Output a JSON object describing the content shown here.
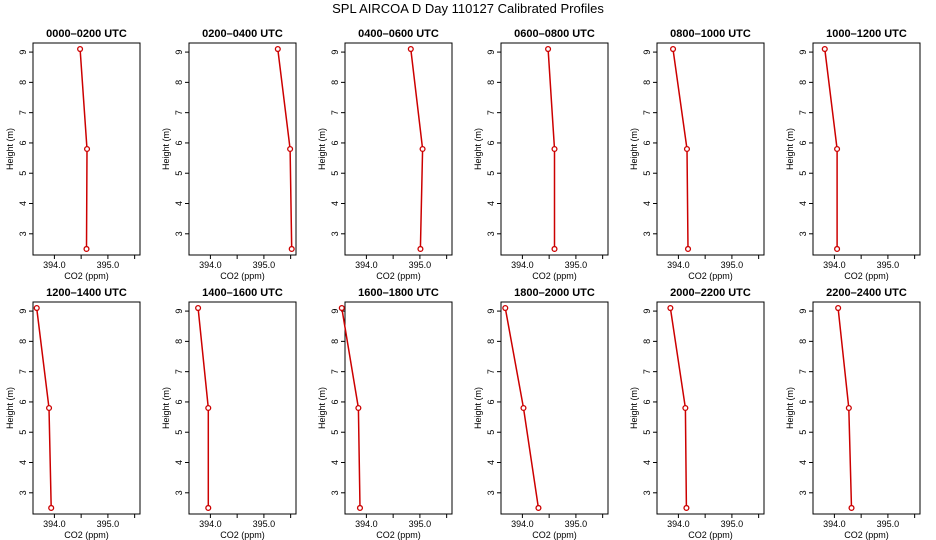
{
  "title": "SPL AIRCOA D  Day 110127  Calibrated Profiles",
  "colors": {
    "profile": "#cc0000",
    "axis": "#000000"
  },
  "chart_data": [
    {
      "type": "line",
      "title": "0000–0200 UTC",
      "xlabel": "CO2 (ppm)",
      "ylabel": "Height (m)",
      "xlim": [
        393.6,
        395.6
      ],
      "ylim": [
        2.3,
        9.3
      ],
      "xticks": [
        "394.0",
        "395.0"
      ],
      "yticks": [
        "3",
        "4",
        "5",
        "6",
        "7",
        "8",
        "9"
      ],
      "series": [
        {
          "x": [
            394.48,
            394.61,
            394.6
          ],
          "y": [
            9.1,
            5.8,
            2.5
          ]
        }
      ]
    },
    {
      "type": "line",
      "title": "0200–0400 UTC",
      "xlabel": "CO2 (ppm)",
      "ylabel": "Height (m)",
      "xlim": [
        393.6,
        395.6
      ],
      "ylim": [
        2.3,
        9.3
      ],
      "xticks": [
        "394.0",
        "395.0"
      ],
      "yticks": [
        "3",
        "4",
        "5",
        "6",
        "7",
        "8",
        "9"
      ],
      "series": [
        {
          "x": [
            395.26,
            395.49,
            395.52
          ],
          "y": [
            9.1,
            5.8,
            2.5
          ]
        }
      ]
    },
    {
      "type": "line",
      "title": "0400–0600 UTC",
      "xlabel": "CO2 (ppm)",
      "ylabel": "Height (m)",
      "xlim": [
        393.6,
        395.6
      ],
      "ylim": [
        2.3,
        9.3
      ],
      "xticks": [
        "394.0",
        "395.0"
      ],
      "yticks": [
        "3",
        "4",
        "5",
        "6",
        "7",
        "8",
        "9"
      ],
      "series": [
        {
          "x": [
            394.83,
            395.05,
            395.01
          ],
          "y": [
            9.1,
            5.8,
            2.5
          ]
        }
      ]
    },
    {
      "type": "line",
      "title": "0600–0800 UTC",
      "xlabel": "CO2 (ppm)",
      "ylabel": "Height (m)",
      "xlim": [
        393.6,
        395.6
      ],
      "ylim": [
        2.3,
        9.3
      ],
      "xticks": [
        "394.0",
        "395.0"
      ],
      "yticks": [
        "3",
        "4",
        "5",
        "6",
        "7",
        "8",
        "9"
      ],
      "series": [
        {
          "x": [
            394.48,
            394.6,
            394.6
          ],
          "y": [
            9.1,
            5.8,
            2.5
          ]
        }
      ]
    },
    {
      "type": "line",
      "title": "0800–1000 UTC",
      "xlabel": "CO2 (ppm)",
      "ylabel": "Height (m)",
      "xlim": [
        393.6,
        395.6
      ],
      "ylim": [
        2.3,
        9.3
      ],
      "xticks": [
        "394.0",
        "395.0"
      ],
      "yticks": [
        "3",
        "4",
        "5",
        "6",
        "7",
        "8",
        "9"
      ],
      "series": [
        {
          "x": [
            393.9,
            394.16,
            394.18
          ],
          "y": [
            9.1,
            5.8,
            2.5
          ]
        }
      ]
    },
    {
      "type": "line",
      "title": "1000–1200 UTC",
      "xlabel": "CO2 (ppm)",
      "ylabel": "Height (m)",
      "xlim": [
        393.6,
        395.6
      ],
      "ylim": [
        2.3,
        9.3
      ],
      "xticks": [
        "394.0",
        "395.0"
      ],
      "yticks": [
        "3",
        "4",
        "5",
        "6",
        "7",
        "8",
        "9"
      ],
      "series": [
        {
          "x": [
            393.82,
            394.05,
            394.05
          ],
          "y": [
            9.1,
            5.8,
            2.5
          ]
        }
      ]
    },
    {
      "type": "line",
      "title": "1200–1400 UTC",
      "xlabel": "CO2 (ppm)",
      "ylabel": "Height (m)",
      "xlim": [
        393.6,
        395.6
      ],
      "ylim": [
        2.3,
        9.3
      ],
      "xticks": [
        "394.0",
        "395.0"
      ],
      "yticks": [
        "3",
        "4",
        "5",
        "6",
        "7",
        "8",
        "9"
      ],
      "series": [
        {
          "x": [
            393.67,
            393.9,
            393.94
          ],
          "y": [
            9.1,
            5.8,
            2.5
          ]
        }
      ]
    },
    {
      "type": "line",
      "title": "1400–1600 UTC",
      "xlabel": "CO2 (ppm)",
      "ylabel": "Height (m)",
      "xlim": [
        393.6,
        395.6
      ],
      "ylim": [
        2.3,
        9.3
      ],
      "xticks": [
        "394.0",
        "395.0"
      ],
      "yticks": [
        "3",
        "4",
        "5",
        "6",
        "7",
        "8",
        "9"
      ],
      "series": [
        {
          "x": [
            393.77,
            393.96,
            393.96
          ],
          "y": [
            9.1,
            5.8,
            2.5
          ]
        }
      ]
    },
    {
      "type": "line",
      "title": "1600–1800 UTC",
      "xlabel": "CO2 (ppm)",
      "ylabel": "Height (m)",
      "xlim": [
        393.6,
        395.6
      ],
      "ylim": [
        2.3,
        9.3
      ],
      "xticks": [
        "394.0",
        "395.0"
      ],
      "yticks": [
        "3",
        "4",
        "5",
        "6",
        "7",
        "8",
        "9"
      ],
      "series": [
        {
          "x": [
            393.54,
            393.85,
            393.88
          ],
          "y": [
            9.1,
            5.8,
            2.5
          ]
        }
      ]
    },
    {
      "type": "line",
      "title": "1800–2000 UTC",
      "xlabel": "CO2 (ppm)",
      "ylabel": "Height (m)",
      "xlim": [
        393.6,
        395.6
      ],
      "ylim": [
        2.3,
        9.3
      ],
      "xticks": [
        "394.0",
        "395.0"
      ],
      "yticks": [
        "3",
        "4",
        "5",
        "6",
        "7",
        "8",
        "9"
      ],
      "series": [
        {
          "x": [
            393.68,
            394.02,
            394.3
          ],
          "y": [
            9.1,
            5.8,
            2.5
          ]
        }
      ]
    },
    {
      "type": "line",
      "title": "2000–2200 UTC",
      "xlabel": "CO2 (ppm)",
      "ylabel": "Height (m)",
      "xlim": [
        393.6,
        395.6
      ],
      "ylim": [
        2.3,
        9.3
      ],
      "xticks": [
        "394.0",
        "395.0"
      ],
      "yticks": [
        "3",
        "4",
        "5",
        "6",
        "7",
        "8",
        "9"
      ],
      "series": [
        {
          "x": [
            393.85,
            394.13,
            394.15
          ],
          "y": [
            9.1,
            5.8,
            2.5
          ]
        }
      ]
    },
    {
      "type": "line",
      "title": "2200–2400 UTC",
      "xlabel": "CO2 (ppm)",
      "ylabel": "Height (m)",
      "xlim": [
        393.6,
        395.6
      ],
      "ylim": [
        2.3,
        9.3
      ],
      "xticks": [
        "394.0",
        "395.0"
      ],
      "yticks": [
        "3",
        "4",
        "5",
        "6",
        "7",
        "8",
        "9"
      ],
      "series": [
        {
          "x": [
            394.07,
            394.27,
            394.32
          ],
          "y": [
            9.1,
            5.8,
            2.5
          ]
        }
      ]
    }
  ]
}
